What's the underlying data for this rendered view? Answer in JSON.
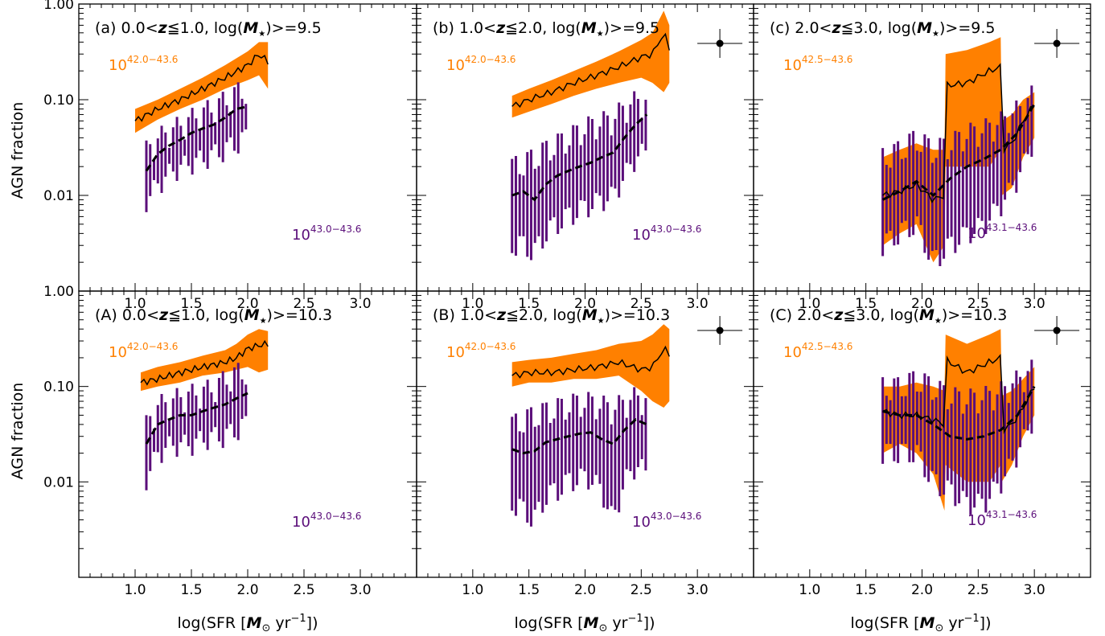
{
  "figure": {
    "ylabel": "AGN fraction",
    "xlabel_prefix": "log(SFR [",
    "xlabel_unit": "M",
    "xlabel_sub": "⊙",
    "xlabel_suffix": " yr",
    "xlabel_exp": "−1",
    "xlabel_close": "])"
  },
  "colors": {
    "high_band": "#ff8000",
    "low_bars": "#5b0e7a",
    "overlap": "#b32a2a",
    "line": "#000000"
  },
  "chart_data": [
    {
      "type": "area",
      "panel": "a",
      "title_parts": [
        "(a) 0.0<",
        "z",
        "≦1.0, log(",
        "M",
        "★",
        ")>=9.5"
      ],
      "xlim": [
        0.5,
        3.5
      ],
      "ylim": [
        0.001,
        1.0
      ],
      "yscale": "log",
      "x_ticks": [
        "1.0",
        "1.5",
        "2.0",
        "2.5",
        "3.0"
      ],
      "y_ticks": [
        "1.00",
        "0.10",
        "0.01"
      ],
      "label_high": {
        "base": "10",
        "exp": "42.0−43.6"
      },
      "label_low": {
        "base": "10",
        "exp": "43.0−43.6"
      },
      "errorbar_marker": false,
      "series": [
        {
          "name": "10^42.0−43.6",
          "style": "band+solid",
          "x": [
            1.0,
            1.2,
            1.4,
            1.6,
            1.8,
            2.0,
            2.1,
            2.18
          ],
          "y": [
            0.06,
            0.08,
            0.1,
            0.13,
            0.17,
            0.23,
            0.3,
            0.25
          ],
          "lo": [
            0.045,
            0.062,
            0.08,
            0.1,
            0.13,
            0.16,
            0.18,
            0.13
          ],
          "hi": [
            0.08,
            0.1,
            0.13,
            0.17,
            0.23,
            0.32,
            0.4,
            0.4
          ]
        },
        {
          "name": "10^43.0−43.6",
          "style": "bars+dashed",
          "x": [
            1.1,
            1.2,
            1.3,
            1.4,
            1.5,
            1.6,
            1.7,
            1.8,
            1.9,
            2.0
          ],
          "y": [
            0.018,
            0.027,
            0.033,
            0.038,
            0.045,
            0.05,
            0.055,
            0.065,
            0.08,
            0.085
          ],
          "lo": [
            0.009,
            0.013,
            0.017,
            0.02,
            0.022,
            0.024,
            0.027,
            0.03,
            0.035,
            0.04
          ],
          "hi": [
            0.03,
            0.04,
            0.048,
            0.055,
            0.065,
            0.075,
            0.085,
            0.1,
            0.12,
            0.13
          ]
        }
      ]
    },
    {
      "type": "area",
      "panel": "b",
      "title_parts": [
        "(b) 1.0<",
        "z",
        "≦2.0, log(",
        "M",
        "★",
        ")>=9.5"
      ],
      "xlim": [
        0.5,
        3.5
      ],
      "ylim": [
        0.001,
        1.0
      ],
      "yscale": "log",
      "x_ticks": [
        "1.0",
        "1.5",
        "2.0",
        "2.5",
        "3.0"
      ],
      "y_ticks": [
        "1.00",
        "0.10",
        "0.01"
      ],
      "label_high": {
        "base": "10",
        "exp": "42.0−43.6"
      },
      "label_low": {
        "base": "10",
        "exp": "43.0−43.6"
      },
      "errorbar_marker": true,
      "series": [
        {
          "name": "10^42.0−43.6",
          "style": "band+solid",
          "x": [
            1.35,
            1.5,
            1.7,
            1.9,
            2.1,
            2.3,
            2.5,
            2.6,
            2.7,
            2.75
          ],
          "y": [
            0.085,
            0.1,
            0.12,
            0.15,
            0.18,
            0.22,
            0.28,
            0.3,
            0.5,
            0.35
          ],
          "lo": [
            0.065,
            0.075,
            0.09,
            0.11,
            0.13,
            0.15,
            0.17,
            0.15,
            0.12,
            0.15
          ],
          "hi": [
            0.11,
            0.13,
            0.16,
            0.2,
            0.25,
            0.32,
            0.42,
            0.5,
            0.85,
            0.6
          ]
        },
        {
          "name": "10^43.0−43.6",
          "style": "bars+dashed",
          "x": [
            1.35,
            1.45,
            1.55,
            1.65,
            1.75,
            1.85,
            1.95,
            2.05,
            2.15,
            2.25,
            2.35,
            2.45,
            2.55
          ],
          "y": [
            0.01,
            0.011,
            0.009,
            0.013,
            0.016,
            0.018,
            0.02,
            0.022,
            0.025,
            0.028,
            0.04,
            0.055,
            0.07
          ],
          "lo": [
            0.003,
            0.003,
            0.0025,
            0.004,
            0.005,
            0.006,
            0.007,
            0.008,
            0.009,
            0.01,
            0.016,
            0.025,
            0.03
          ],
          "hi": [
            0.02,
            0.022,
            0.025,
            0.03,
            0.035,
            0.04,
            0.048,
            0.055,
            0.06,
            0.065,
            0.085,
            0.1,
            0.1
          ]
        }
      ]
    },
    {
      "type": "area",
      "panel": "c",
      "title_parts": [
        "(c) 2.0<",
        "z",
        "≦3.0, log(",
        "M",
        "★",
        ")>=9.5"
      ],
      "xlim": [
        0.5,
        3.5
      ],
      "ylim": [
        0.001,
        1.0
      ],
      "yscale": "log",
      "x_ticks": [
        "1.0",
        "1.5",
        "2.0",
        "2.5",
        "3.0"
      ],
      "y_ticks": [
        "1.00",
        "0.10",
        "0.01"
      ],
      "label_high": {
        "base": "10",
        "exp": "42.5−43.6"
      },
      "label_low": {
        "base": "10",
        "exp": "43.1−43.6"
      },
      "errorbar_marker": true,
      "series": [
        {
          "name": "10^42.5−43.6",
          "style": "band+solid",
          "x": [
            1.65,
            1.8,
            1.95,
            2.1,
            2.2,
            2.21,
            2.4,
            2.6,
            2.7,
            2.71,
            2.8,
            2.9,
            3.0
          ],
          "y": [
            0.01,
            0.011,
            0.013,
            0.009,
            0.01,
            0.14,
            0.15,
            0.2,
            0.22,
            0.03,
            0.035,
            0.06,
            0.09
          ],
          "lo": [
            0.003,
            0.004,
            0.005,
            0.002,
            0.003,
            0.02,
            0.02,
            0.02,
            0.03,
            0.01,
            0.012,
            0.025,
            0.04
          ],
          "hi": [
            0.025,
            0.03,
            0.035,
            0.03,
            0.03,
            0.3,
            0.33,
            0.4,
            0.45,
            0.06,
            0.07,
            0.1,
            0.12
          ]
        },
        {
          "name": "10^43.1−43.6",
          "style": "bars+dashed",
          "x": [
            1.65,
            1.8,
            1.95,
            2.1,
            2.25,
            2.4,
            2.55,
            2.7,
            2.85,
            3.0
          ],
          "y": [
            0.009,
            0.011,
            0.014,
            0.01,
            0.015,
            0.02,
            0.024,
            0.03,
            0.045,
            0.09
          ],
          "lo": [
            0.003,
            0.004,
            0.005,
            0.002,
            0.003,
            0.004,
            0.005,
            0.008,
            0.015,
            0.04
          ],
          "hi": [
            0.025,
            0.03,
            0.04,
            0.03,
            0.035,
            0.045,
            0.05,
            0.06,
            0.08,
            0.12
          ]
        }
      ]
    },
    {
      "type": "area",
      "panel": "A",
      "title_parts": [
        "(A) 0.0<",
        "z",
        "≦1.0, log(",
        "M",
        "★",
        ")>=10.3"
      ],
      "xlim": [
        0.5,
        3.5
      ],
      "ylim": [
        0.001,
        1.0
      ],
      "yscale": "log",
      "x_ticks": [
        "1.0",
        "1.5",
        "2.0",
        "2.5",
        "3.0"
      ],
      "y_ticks": [
        "1.00",
        "0.10",
        "0.01"
      ],
      "label_high": {
        "base": "10",
        "exp": "42.0−43.6"
      },
      "label_low": {
        "base": "10",
        "exp": "43.0−43.6"
      },
      "errorbar_marker": false,
      "series": [
        {
          "name": "10^42.0−43.6",
          "style": "band+solid",
          "x": [
            1.05,
            1.2,
            1.4,
            1.6,
            1.8,
            1.9,
            2.0,
            2.1,
            2.18
          ],
          "y": [
            0.11,
            0.12,
            0.14,
            0.16,
            0.18,
            0.2,
            0.25,
            0.27,
            0.28
          ],
          "lo": [
            0.09,
            0.1,
            0.11,
            0.13,
            0.14,
            0.15,
            0.16,
            0.14,
            0.15
          ],
          "hi": [
            0.14,
            0.16,
            0.18,
            0.21,
            0.24,
            0.28,
            0.35,
            0.4,
            0.38
          ]
        },
        {
          "name": "10^43.0−43.6",
          "style": "bars+dashed",
          "x": [
            1.1,
            1.2,
            1.3,
            1.4,
            1.5,
            1.6,
            1.7,
            1.8,
            1.9,
            2.0
          ],
          "y": [
            0.025,
            0.04,
            0.045,
            0.05,
            0.05,
            0.055,
            0.06,
            0.065,
            0.075,
            0.085
          ],
          "lo": [
            0.011,
            0.02,
            0.024,
            0.025,
            0.025,
            0.028,
            0.03,
            0.03,
            0.035,
            0.04
          ],
          "hi": [
            0.04,
            0.065,
            0.07,
            0.08,
            0.085,
            0.09,
            0.1,
            0.12,
            0.14,
            0.15
          ]
        }
      ]
    },
    {
      "type": "area",
      "panel": "B",
      "title_parts": [
        "(B) 1.0<",
        "z",
        "≦2.0, log(",
        "M",
        "★",
        ")>=10.3"
      ],
      "xlim": [
        0.5,
        3.5
      ],
      "ylim": [
        0.001,
        1.0
      ],
      "yscale": "log",
      "x_ticks": [
        "1.0",
        "1.5",
        "2.0",
        "2.5",
        "3.0"
      ],
      "y_ticks": [
        "1.00",
        "0.10",
        "0.01"
      ],
      "label_high": {
        "base": "10",
        "exp": "42.0−43.6"
      },
      "label_low": {
        "base": "10",
        "exp": "43.0−43.6"
      },
      "errorbar_marker": true,
      "series": [
        {
          "name": "10^42.0−43.6",
          "style": "band+solid",
          "x": [
            1.35,
            1.5,
            1.7,
            1.9,
            2.1,
            2.3,
            2.5,
            2.6,
            2.7,
            2.75
          ],
          "y": [
            0.13,
            0.14,
            0.14,
            0.15,
            0.16,
            0.18,
            0.15,
            0.16,
            0.25,
            0.22
          ],
          "lo": [
            0.1,
            0.11,
            0.11,
            0.12,
            0.12,
            0.13,
            0.09,
            0.07,
            0.06,
            0.07
          ],
          "hi": [
            0.18,
            0.19,
            0.2,
            0.22,
            0.24,
            0.28,
            0.3,
            0.35,
            0.45,
            0.4
          ]
        },
        {
          "name": "10^43.0−43.6",
          "style": "bars+dashed",
          "x": [
            1.35,
            1.45,
            1.55,
            1.65,
            1.75,
            1.85,
            1.95,
            2.05,
            2.15,
            2.25,
            2.35,
            2.45,
            2.55
          ],
          "y": [
            0.022,
            0.02,
            0.021,
            0.026,
            0.028,
            0.03,
            0.032,
            0.033,
            0.028,
            0.025,
            0.035,
            0.045,
            0.04
          ],
          "lo": [
            0.006,
            0.005,
            0.004,
            0.007,
            0.008,
            0.01,
            0.011,
            0.011,
            0.008,
            0.004,
            0.01,
            0.015,
            0.013
          ],
          "hi": [
            0.04,
            0.045,
            0.05,
            0.055,
            0.06,
            0.065,
            0.07,
            0.07,
            0.065,
            0.06,
            0.07,
            0.08,
            0.075
          ]
        }
      ]
    },
    {
      "type": "area",
      "panel": "C",
      "title_parts": [
        "(C) 2.0<",
        "z",
        "≦3.0, log(",
        "M",
        "★",
        ")>=10.3"
      ],
      "xlim": [
        0.5,
        3.5
      ],
      "ylim": [
        0.001,
        1.0
      ],
      "yscale": "log",
      "x_ticks": [
        "1.0",
        "1.5",
        "2.0",
        "2.5",
        "3.0"
      ],
      "y_ticks": [
        "1.00",
        "0.10",
        "0.01"
      ],
      "label_high": {
        "base": "10",
        "exp": "42.5−43.6"
      },
      "label_low": {
        "base": "10",
        "exp": "43.1−43.6"
      },
      "errorbar_marker": true,
      "series": [
        {
          "name": "10^42.5−43.6",
          "style": "band+solid",
          "x": [
            1.65,
            1.8,
            1.95,
            2.1,
            2.2,
            2.21,
            2.4,
            2.6,
            2.7,
            2.71,
            2.8,
            2.9,
            3.0
          ],
          "y": [
            0.055,
            0.05,
            0.05,
            0.045,
            0.04,
            0.19,
            0.14,
            0.18,
            0.2,
            0.035,
            0.04,
            0.06,
            0.1
          ],
          "lo": [
            0.02,
            0.025,
            0.02,
            0.012,
            0.005,
            0.015,
            0.01,
            0.01,
            0.015,
            0.01,
            0.015,
            0.03,
            0.05
          ],
          "hi": [
            0.1,
            0.1,
            0.11,
            0.1,
            0.09,
            0.35,
            0.28,
            0.35,
            0.4,
            0.08,
            0.09,
            0.12,
            0.16
          ]
        },
        {
          "name": "10^43.1−43.6",
          "style": "bars+dashed",
          "x": [
            1.65,
            1.8,
            1.95,
            2.1,
            2.25,
            2.4,
            2.55,
            2.7,
            2.85,
            3.0
          ],
          "y": [
            0.055,
            0.05,
            0.05,
            0.04,
            0.03,
            0.028,
            0.03,
            0.035,
            0.05,
            0.1
          ],
          "lo": [
            0.02,
            0.02,
            0.02,
            0.01,
            0.008,
            0.006,
            0.006,
            0.01,
            0.02,
            0.05
          ],
          "hi": [
            0.1,
            0.1,
            0.12,
            0.1,
            0.08,
            0.075,
            0.08,
            0.09,
            0.12,
            0.16
          ]
        }
      ]
    }
  ]
}
